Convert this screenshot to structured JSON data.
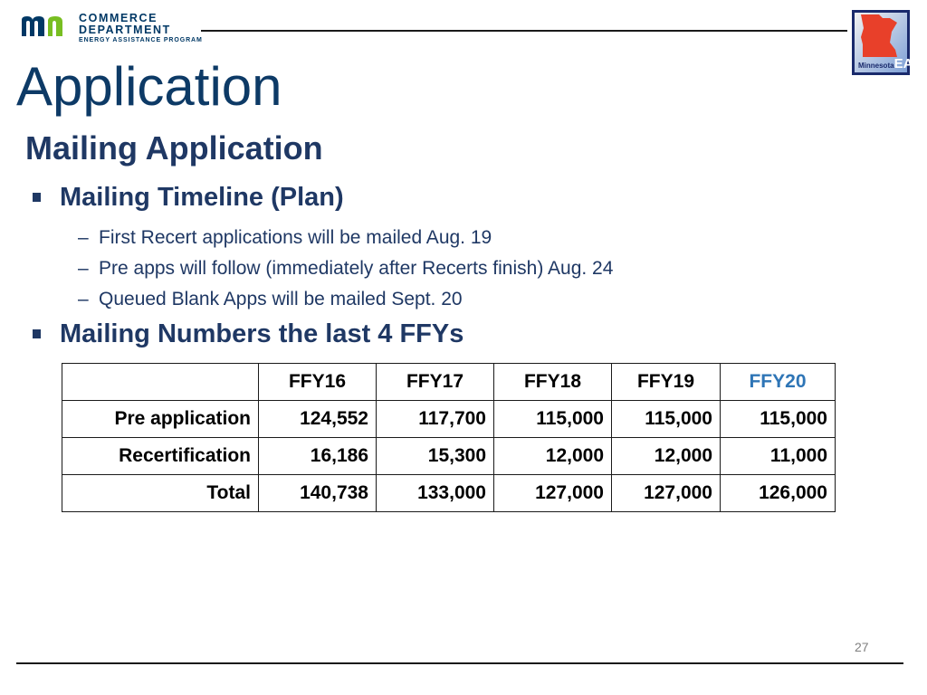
{
  "header": {
    "logo": {
      "line1": "COMMERCE",
      "line2": "DEPARTMENT",
      "line3": "ENERGY ASSISTANCE PROGRAM",
      "mark_colors": {
        "m": "#003865",
        "n": "#78be21"
      }
    },
    "badge": {
      "small_text": "Minnesota",
      "big_text": "EAP",
      "bg": "#2c5a9e",
      "map_color": "#e8402a"
    }
  },
  "slide": {
    "title": "Application",
    "subtitle": "Mailing Application",
    "bullets": [
      {
        "label": "Mailing Timeline (Plan)",
        "subitems": [
          "First Recert applications will be mailed Aug. 19",
          "Pre apps will follow (immediately after Recerts finish) Aug. 24",
          "Queued Blank Apps will be mailed Sept. 20"
        ]
      },
      {
        "label": "Mailing Numbers the last 4 FFYs"
      }
    ],
    "dash": "–",
    "table": {
      "headers": [
        "",
        "FFY16",
        "FFY17",
        "FFY18",
        "FFY19",
        "FFY20"
      ],
      "rows": [
        {
          "label": "Pre application",
          "values": [
            "124,552",
            "117,700",
            "115,000",
            "115,000",
            "115,000"
          ]
        },
        {
          "label": "Recertification",
          "values": [
            "16,186",
            "15,300",
            "12,000",
            "12,000",
            "11,000"
          ]
        },
        {
          "label": "Total",
          "values": [
            "140,738",
            "133,000",
            "127,000",
            "127,000",
            "126,000"
          ]
        }
      ]
    },
    "page_number": "27"
  },
  "colors": {
    "title": "#0d3a66",
    "body": "#1f3864",
    "accent": "#2e75b6"
  }
}
